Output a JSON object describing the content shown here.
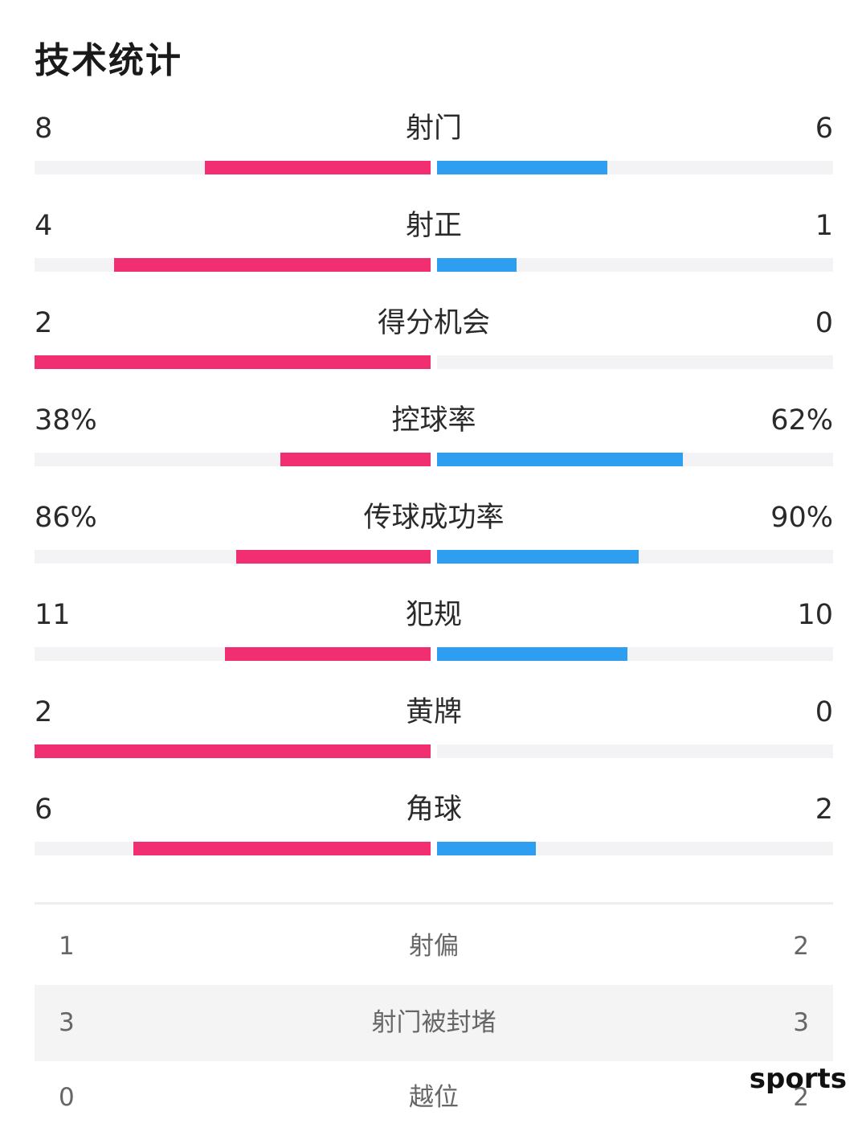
{
  "title": "技术统计",
  "colors": {
    "home": "#f22e72",
    "away": "#2e9ff0",
    "track": "#f3f3f5"
  },
  "stats": [
    {
      "label": "射门",
      "home": "8",
      "away": "6",
      "home_share": 0.57,
      "away_share": 0.43
    },
    {
      "label": "射正",
      "home": "4",
      "away": "1",
      "home_share": 0.8,
      "away_share": 0.2
    },
    {
      "label": "得分机会",
      "home": "2",
      "away": "0",
      "home_share": 1.0,
      "away_share": 0.0
    },
    {
      "label": "控球率",
      "home": "38%",
      "away": "62%",
      "home_share": 0.38,
      "away_share": 0.62
    },
    {
      "label": "传球成功率",
      "home": "86%",
      "away": "90%",
      "home_share": 0.49,
      "away_share": 0.51
    },
    {
      "label": "犯规",
      "home": "11",
      "away": "10",
      "home_share": 0.52,
      "away_share": 0.48
    },
    {
      "label": "黄牌",
      "home": "2",
      "away": "0",
      "home_share": 1.0,
      "away_share": 0.0
    },
    {
      "label": "角球",
      "home": "6",
      "away": "2",
      "home_share": 0.75,
      "away_share": 0.25
    }
  ],
  "table": [
    {
      "label": "射偏",
      "home": "1",
      "away": "2"
    },
    {
      "label": "射门被封堵",
      "home": "3",
      "away": "3"
    },
    {
      "label": "越位",
      "home": "0",
      "away": "2"
    }
  ],
  "watermark": "sports"
}
